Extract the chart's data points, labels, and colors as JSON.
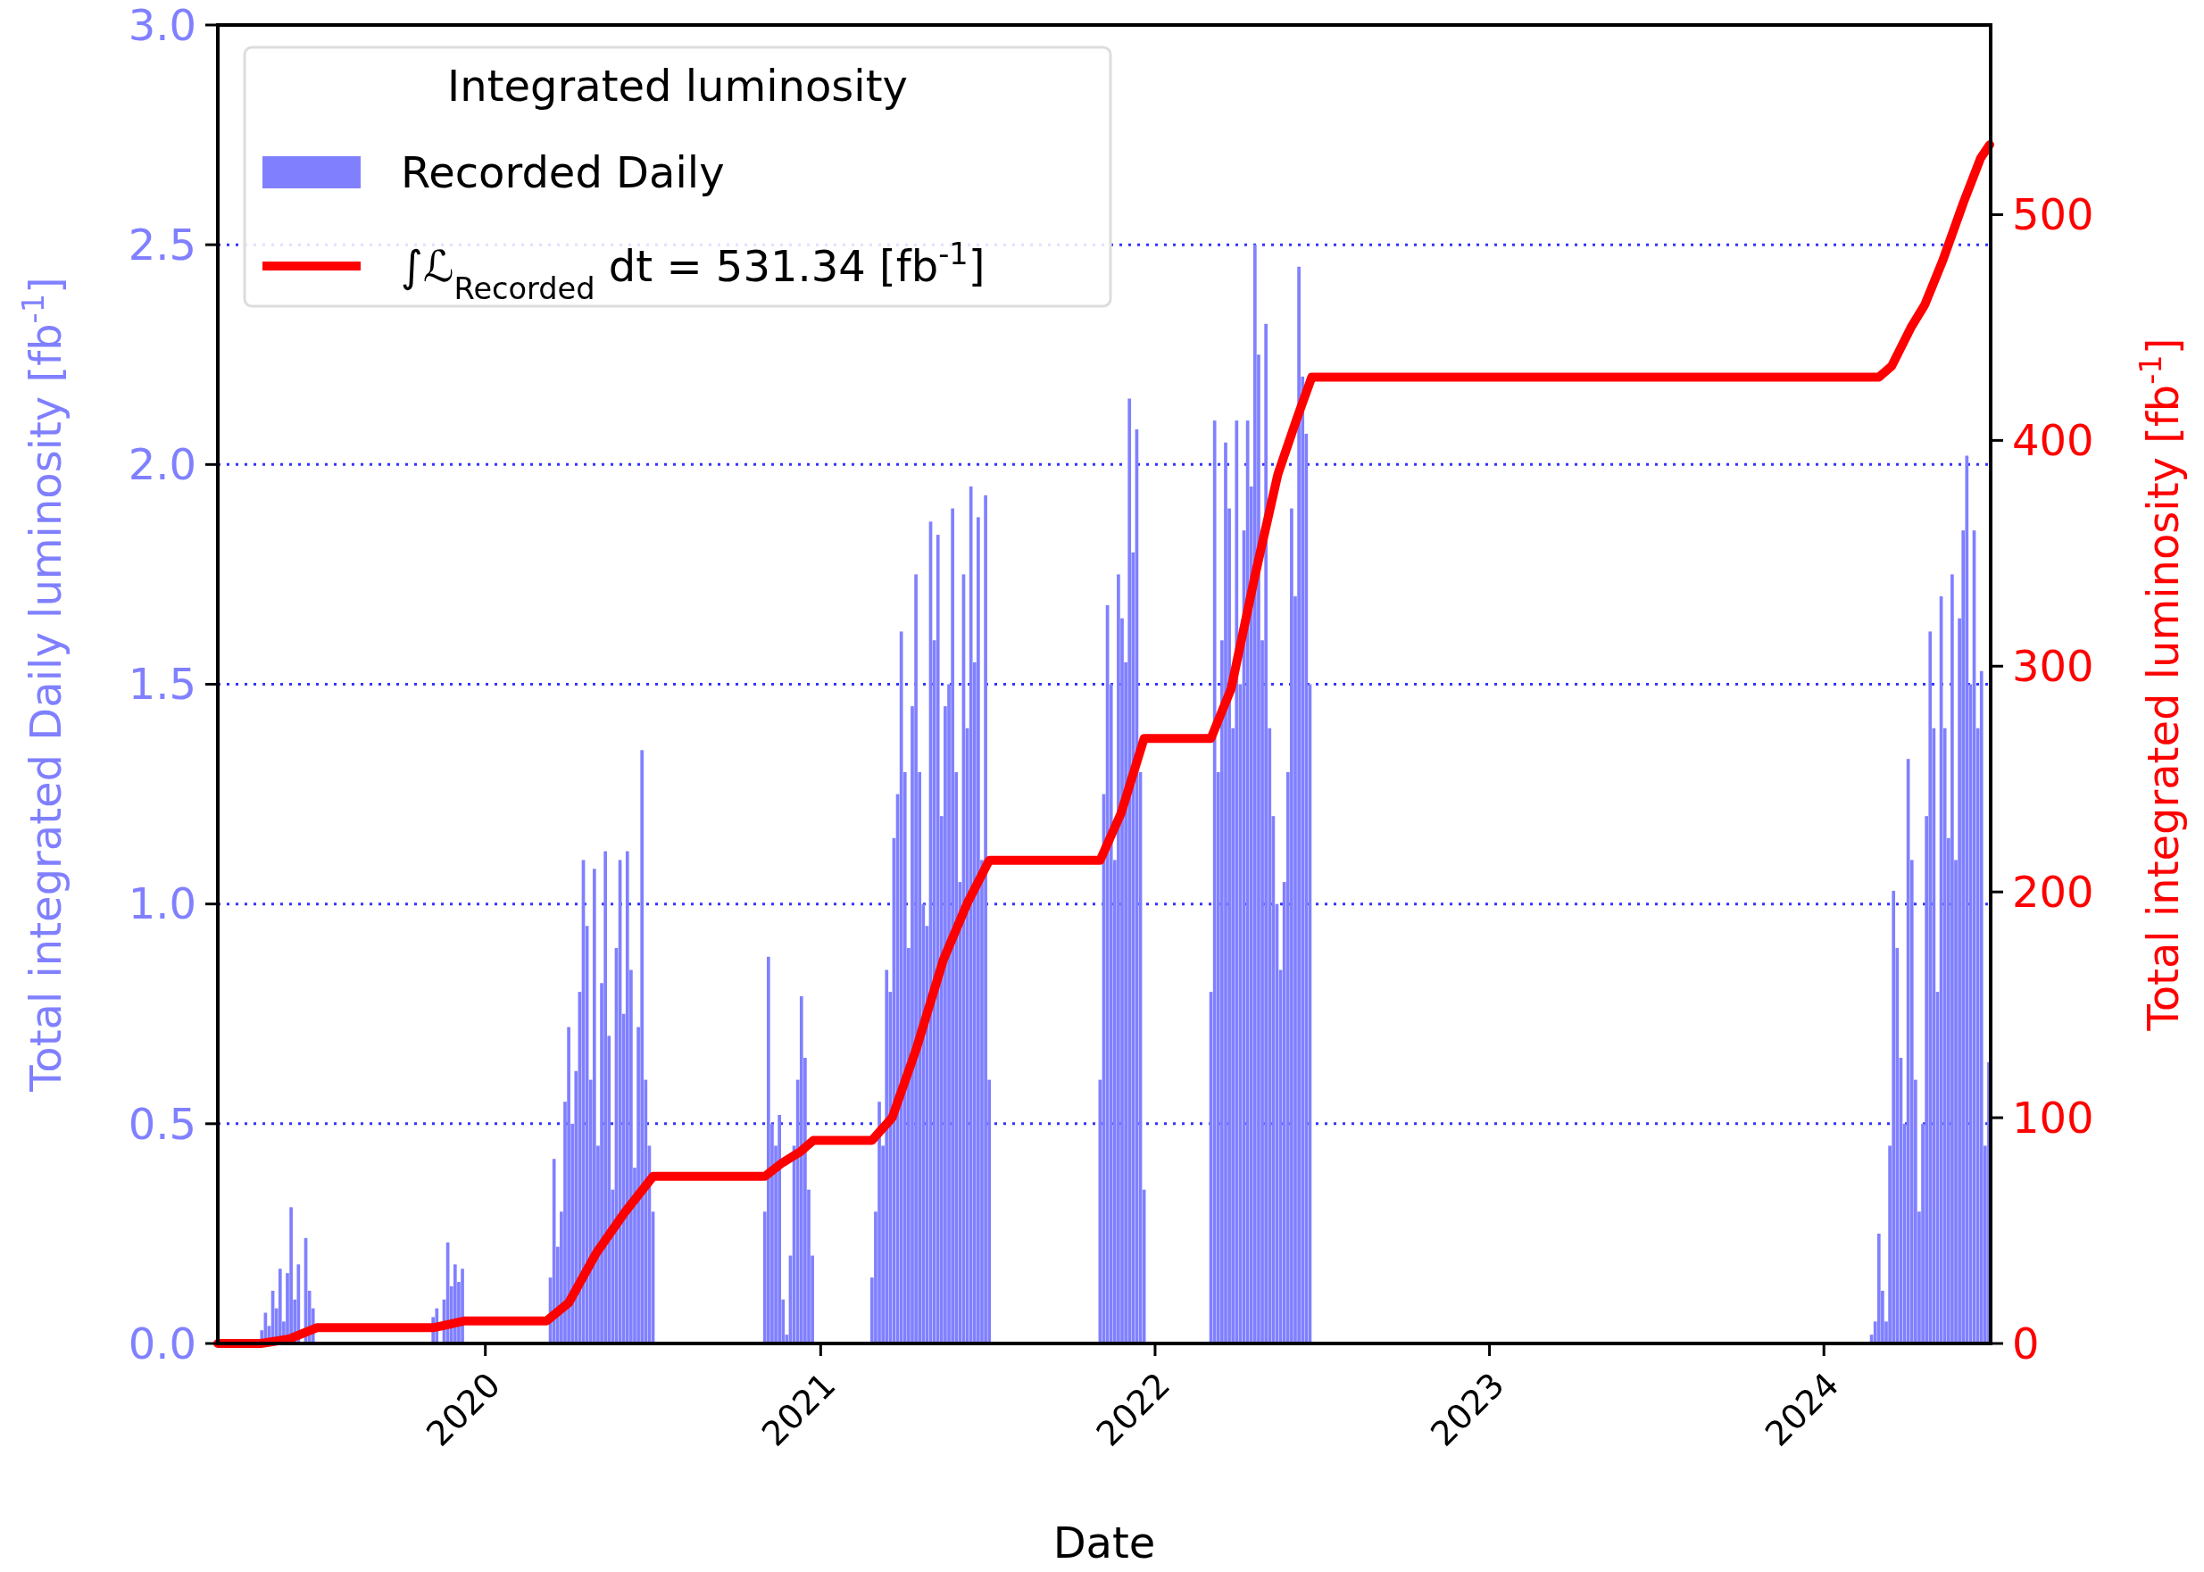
{
  "chart_data": {
    "type": "bar",
    "xlabel": "Date",
    "ylabel": "Total integrated Daily luminosity [fb$^{-1}$]",
    "y2label": "Total integrated luminosity [fb$^{-1}$]",
    "legend_title": "Integrated luminosity",
    "legend": "top left",
    "grid": "y",
    "xlim": [
      "2019-03-15",
      "2024-07-01"
    ],
    "xticks": [
      {
        "value": "2020-01-01",
        "label": "2020"
      },
      {
        "value": "2021-01-01",
        "label": "2021"
      },
      {
        "value": "2022-01-01",
        "label": "2022"
      },
      {
        "value": "2023-01-01",
        "label": "2023"
      },
      {
        "value": "2024-01-01",
        "label": "2024"
      }
    ],
    "ylim": [
      0,
      3
    ],
    "yticks": [
      {
        "value": 0,
        "label": "0.0"
      },
      {
        "value": 0.5,
        "label": "0.5"
      },
      {
        "value": 1,
        "label": "1.0"
      },
      {
        "value": 1.5,
        "label": "1.5"
      },
      {
        "value": 2,
        "label": "2.0"
      },
      {
        "value": 2.5,
        "label": "2.5"
      },
      {
        "value": 3,
        "label": "3.0"
      }
    ],
    "y2lim": [
      0,
      584
    ],
    "y2ticks": [
      0,
      100,
      200,
      300,
      400,
      500
    ],
    "series": [
      {
        "name": "Recorded Daily",
        "color": "#8080ff",
        "x": [
          "2019-05-02",
          "2019-05-06",
          "2019-05-10",
          "2019-05-14",
          "2019-05-18",
          "2019-05-22",
          "2019-05-26",
          "2019-05-30",
          "2019-06-03",
          "2019-06-07",
          "2019-06-11",
          "2019-06-15",
          "2019-06-19",
          "2019-06-23",
          "2019-06-27",
          "2019-11-05",
          "2019-11-09",
          "2019-11-13",
          "2019-11-17",
          "2019-11-21",
          "2019-11-25",
          "2019-11-29",
          "2019-12-03",
          "2019-12-07",
          "2020-03-08",
          "2020-03-12",
          "2020-03-16",
          "2020-03-20",
          "2020-03-24",
          "2020-03-28",
          "2020-04-01",
          "2020-04-05",
          "2020-04-09",
          "2020-04-13",
          "2020-04-17",
          "2020-04-21",
          "2020-04-25",
          "2020-04-29",
          "2020-05-03",
          "2020-05-07",
          "2020-05-11",
          "2020-05-15",
          "2020-05-19",
          "2020-05-23",
          "2020-05-27",
          "2020-05-31",
          "2020-06-04",
          "2020-06-08",
          "2020-06-12",
          "2020-06-16",
          "2020-06-20",
          "2020-06-24",
          "2020-06-28",
          "2020-07-02",
          "2020-11-01",
          "2020-11-05",
          "2020-11-09",
          "2020-11-13",
          "2020-11-17",
          "2020-11-21",
          "2020-11-25",
          "2020-11-29",
          "2020-12-03",
          "2020-12-07",
          "2020-12-11",
          "2020-12-15",
          "2020-12-19",
          "2020-12-23",
          "2021-02-26",
          "2021-03-02",
          "2021-03-06",
          "2021-03-10",
          "2021-03-14",
          "2021-03-18",
          "2021-03-22",
          "2021-03-26",
          "2021-03-30",
          "2021-04-03",
          "2021-04-07",
          "2021-04-11",
          "2021-04-15",
          "2021-04-19",
          "2021-04-23",
          "2021-04-27",
          "2021-05-01",
          "2021-05-05",
          "2021-05-09",
          "2021-05-13",
          "2021-05-17",
          "2021-05-21",
          "2021-05-25",
          "2021-05-29",
          "2021-06-02",
          "2021-06-06",
          "2021-06-10",
          "2021-06-14",
          "2021-06-18",
          "2021-06-22",
          "2021-06-26",
          "2021-06-30",
          "2021-07-04",
          "2021-11-02",
          "2021-11-06",
          "2021-11-10",
          "2021-11-14",
          "2021-11-18",
          "2021-11-22",
          "2021-11-26",
          "2021-11-30",
          "2021-12-04",
          "2021-12-08",
          "2021-12-12",
          "2021-12-16",
          "2021-12-20",
          "2022-03-03",
          "2022-03-07",
          "2022-03-11",
          "2022-03-15",
          "2022-03-19",
          "2022-03-23",
          "2022-03-27",
          "2022-03-31",
          "2022-04-04",
          "2022-04-08",
          "2022-04-12",
          "2022-04-16",
          "2022-04-20",
          "2022-04-24",
          "2022-04-28",
          "2022-05-02",
          "2022-05-06",
          "2022-05-10",
          "2022-05-14",
          "2022-05-18",
          "2022-05-22",
          "2022-05-26",
          "2022-05-30",
          "2022-06-03",
          "2022-06-07",
          "2022-06-11",
          "2022-06-15",
          "2022-06-19",
          "2024-02-22",
          "2024-02-26",
          "2024-03-01",
          "2024-03-05",
          "2024-03-09",
          "2024-03-13",
          "2024-03-17",
          "2024-03-21",
          "2024-03-25",
          "2024-03-29",
          "2024-04-02",
          "2024-04-06",
          "2024-04-10",
          "2024-04-14",
          "2024-04-18",
          "2024-04-22",
          "2024-04-26",
          "2024-04-30",
          "2024-05-04",
          "2024-05-08",
          "2024-05-12",
          "2024-05-16",
          "2024-05-20",
          "2024-05-24",
          "2024-05-28",
          "2024-06-01",
          "2024-06-05",
          "2024-06-09",
          "2024-06-13",
          "2024-06-17",
          "2024-06-21",
          "2024-06-25",
          "2024-06-29"
        ],
        "values": [
          0.03,
          0.07,
          0.04,
          0.12,
          0.08,
          0.17,
          0.05,
          0.16,
          0.31,
          0.1,
          0.18,
          null,
          0.24,
          0.12,
          0.08,
          0.06,
          0.08,
          null,
          0.1,
          0.23,
          0.13,
          0.18,
          0.14,
          0.17,
          null,
          0.15,
          0.42,
          0.22,
          0.3,
          0.55,
          0.72,
          0.5,
          0.62,
          0.8,
          1.1,
          0.95,
          0.6,
          1.08,
          0.45,
          0.82,
          1.12,
          0.7,
          0.35,
          0.9,
          1.1,
          0.75,
          1.12,
          0.85,
          0.4,
          0.72,
          1.35,
          0.6,
          0.45,
          0.3,
          0.3,
          0.88,
          0.5,
          0.45,
          0.52,
          0.1,
          0.02,
          0.2,
          0.45,
          0.6,
          0.79,
          0.65,
          0.35,
          0.2,
          0.15,
          0.3,
          0.55,
          0.45,
          0.85,
          0.8,
          1.15,
          1.25,
          1.62,
          1.3,
          0.9,
          1.45,
          1.75,
          1.3,
          1.0,
          0.95,
          1.87,
          1.6,
          1.84,
          1.2,
          1.45,
          1.5,
          1.9,
          1.3,
          1.05,
          1.75,
          1.4,
          1.95,
          1.55,
          1.88,
          1.1,
          1.93,
          0.6,
          0.6,
          1.25,
          1.68,
          1.5,
          1.1,
          1.75,
          1.65,
          1.55,
          2.15,
          1.8,
          2.08,
          1.3,
          0.35,
          0.8,
          2.1,
          1.3,
          1.6,
          2.05,
          1.9,
          1.4,
          2.1,
          1.5,
          1.85,
          2.1,
          1.95,
          2.5,
          2.25,
          1.6,
          2.32,
          1.4,
          1.2,
          1.0,
          0.85,
          1.05,
          1.3,
          1.9,
          1.7,
          2.45,
          2.2,
          2.07,
          1.5,
          0.02,
          0.05,
          0.25,
          0.12,
          0.05,
          0.45,
          1.03,
          0.9,
          0.65,
          0.5,
          1.33,
          1.1,
          0.6,
          0.3,
          0.5,
          1.2,
          1.62,
          1.4,
          0.8,
          1.7,
          1.4,
          1.15,
          1.75,
          1.1,
          1.65,
          1.85,
          2.02,
          1.5,
          1.85,
          1.4,
          1.53,
          0.45,
          0.64
        ]
      },
      {
        "name": "∫ℒ$_{Recorded}$ dt = 531.34 [fb$^{-1}$]",
        "type": "line",
        "axis": "y2",
        "color": "#ff0000",
        "line_style": "solid",
        "marker": "none",
        "x": [
          "2019-03-15",
          "2019-05-01",
          "2019-06-01",
          "2019-07-01",
          "2019-11-05",
          "2019-12-10",
          "2020-03-08",
          "2020-04-01",
          "2020-05-01",
          "2020-06-01",
          "2020-07-02",
          "2020-11-01",
          "2020-11-20",
          "2020-12-10",
          "2020-12-24",
          "2021-02-26",
          "2021-03-20",
          "2021-04-15",
          "2021-05-15",
          "2021-06-10",
          "2021-07-04",
          "2021-11-02",
          "2021-11-25",
          "2021-12-20",
          "2022-03-03",
          "2022-03-25",
          "2022-04-20",
          "2022-05-15",
          "2022-06-05",
          "2022-06-21",
          "2024-03-01",
          "2024-03-15",
          "2024-04-05",
          "2024-04-20",
          "2024-05-10",
          "2024-06-01",
          "2024-06-20",
          "2024-06-30"
        ],
        "values": [
          0,
          0,
          2,
          7,
          7,
          10,
          10,
          18,
          40,
          58,
          74,
          74,
          80,
          85,
          90,
          90,
          100,
          130,
          170,
          195,
          214,
          214,
          235,
          268,
          268,
          290,
          340,
          385,
          410,
          428,
          428,
          433,
          450,
          460,
          480,
          505,
          525,
          531
        ]
      }
    ]
  }
}
